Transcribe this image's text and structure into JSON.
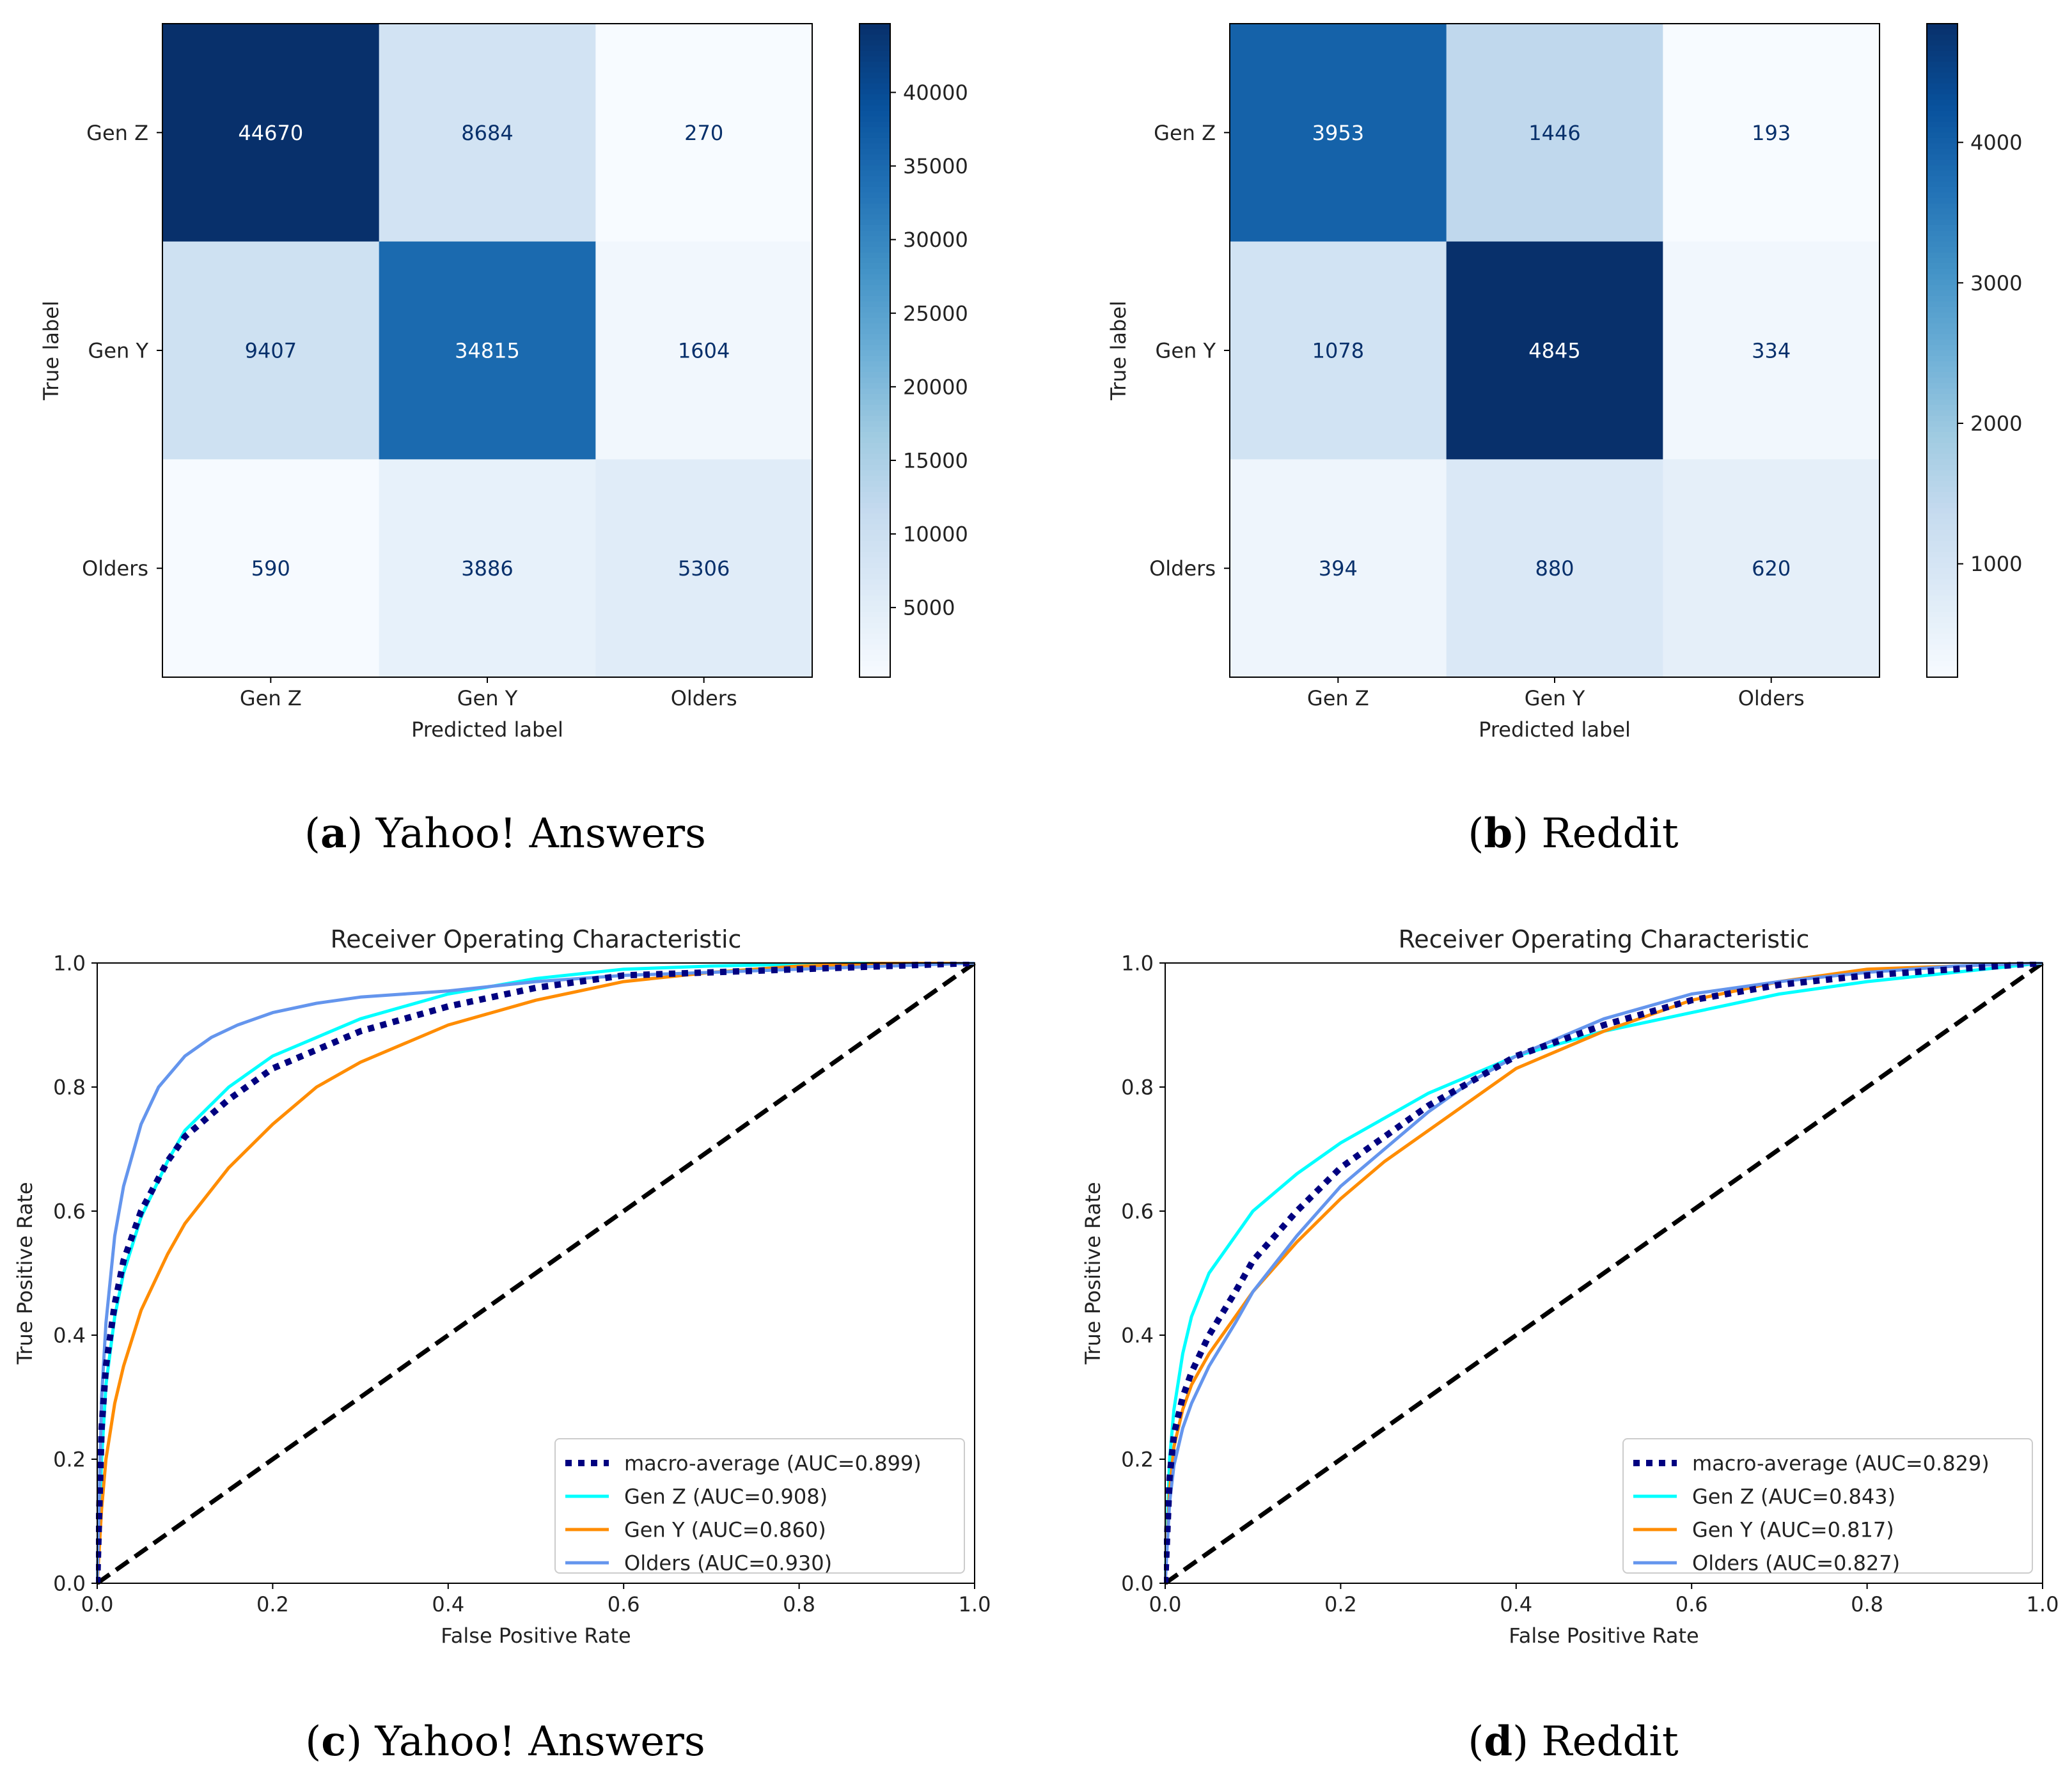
{
  "chart_data": [
    {
      "id": "a",
      "type": "heatmap",
      "subtitle_letter": "a",
      "subtitle_text": "Yahoo! Answers",
      "xlabel": "Predicted label",
      "ylabel": "True label",
      "x_categories": [
        "Gen Z",
        "Gen Y",
        "Olders"
      ],
      "y_categories": [
        "Gen Z",
        "Gen Y",
        "Olders"
      ],
      "matrix": [
        [
          44670,
          8684,
          270
        ],
        [
          9407,
          34815,
          1604
        ],
        [
          590,
          3886,
          5306
        ]
      ],
      "colorbar_range": [
        270,
        44670
      ],
      "colorbar_ticks": [
        5000,
        10000,
        15000,
        20000,
        25000,
        30000,
        35000,
        40000
      ],
      "colorbar_tick_labels": [
        "5000",
        "10000",
        "15000",
        "20000",
        "25000",
        "30000",
        "35000",
        "40000"
      ],
      "colormap": [
        "#f7fbff",
        "#deebf7",
        "#c6dbef",
        "#9ecae1",
        "#6baed6",
        "#4292c6",
        "#2171b5",
        "#08519c",
        "#08306b"
      ]
    },
    {
      "id": "b",
      "type": "heatmap",
      "subtitle_letter": "b",
      "subtitle_text": "Reddit",
      "xlabel": "Predicted label",
      "ylabel": "True label",
      "x_categories": [
        "Gen Z",
        "Gen Y",
        "Olders"
      ],
      "y_categories": [
        "Gen Z",
        "Gen Y",
        "Olders"
      ],
      "matrix": [
        [
          3953,
          1446,
          193
        ],
        [
          1078,
          4845,
          334
        ],
        [
          394,
          880,
          620
        ]
      ],
      "colorbar_range": [
        193,
        4845
      ],
      "colorbar_ticks": [
        1000,
        2000,
        3000,
        4000
      ],
      "colorbar_tick_labels": [
        "1000",
        "2000",
        "3000",
        "4000"
      ],
      "colormap": [
        "#f7fbff",
        "#deebf7",
        "#c6dbef",
        "#9ecae1",
        "#6baed6",
        "#4292c6",
        "#2171b5",
        "#08519c",
        "#08306b"
      ]
    },
    {
      "id": "c",
      "type": "line",
      "title": "Receiver Operating Characteristic",
      "subtitle_letter": "c",
      "subtitle_text": "Yahoo! Answers",
      "xlabel": "False Positive Rate",
      "ylabel": "True Positive Rate",
      "xlim": [
        0,
        1
      ],
      "ylim": [
        0,
        1
      ],
      "xticks": [
        0,
        0.2,
        0.4,
        0.6,
        0.8,
        1.0
      ],
      "yticks": [
        0,
        0.2,
        0.4,
        0.6,
        0.8,
        1.0
      ],
      "xtick_labels": [
        "0.0",
        "0.2",
        "0.4",
        "0.6",
        "0.8",
        "1.0"
      ],
      "ytick_labels": [
        "0.0",
        "0.2",
        "0.4",
        "0.6",
        "0.8",
        "1.0"
      ],
      "legend_position": "lower-right",
      "diagonal": {
        "color": "#000000",
        "style": "dashed"
      },
      "series": [
        {
          "name": "macro-average (AUC=0.899)",
          "color": "#000080",
          "style": "dotted",
          "x": [
            0,
            0.005,
            0.01,
            0.02,
            0.03,
            0.05,
            0.08,
            0.1,
            0.15,
            0.2,
            0.25,
            0.3,
            0.35,
            0.4,
            0.5,
            0.6,
            0.7,
            0.8,
            0.9,
            1.0
          ],
          "y": [
            0,
            0.25,
            0.35,
            0.45,
            0.52,
            0.6,
            0.68,
            0.72,
            0.78,
            0.83,
            0.86,
            0.89,
            0.91,
            0.93,
            0.96,
            0.98,
            0.985,
            0.99,
            0.995,
            1.0
          ]
        },
        {
          "name": "Gen Z (AUC=0.908)",
          "color": "#00ffff",
          "style": "solid",
          "x": [
            0,
            0.005,
            0.01,
            0.02,
            0.03,
            0.05,
            0.08,
            0.1,
            0.15,
            0.2,
            0.25,
            0.3,
            0.35,
            0.4,
            0.5,
            0.6,
            0.7,
            0.8,
            0.9,
            1.0
          ],
          "y": [
            0,
            0.2,
            0.32,
            0.43,
            0.5,
            0.59,
            0.68,
            0.73,
            0.8,
            0.85,
            0.88,
            0.91,
            0.93,
            0.95,
            0.975,
            0.99,
            0.995,
            0.998,
            1.0,
            1.0
          ]
        },
        {
          "name": "Gen Y (AUC=0.860)",
          "color": "#ff8c00",
          "style": "solid",
          "x": [
            0,
            0.005,
            0.01,
            0.02,
            0.03,
            0.05,
            0.08,
            0.1,
            0.15,
            0.2,
            0.25,
            0.3,
            0.35,
            0.4,
            0.5,
            0.6,
            0.7,
            0.8,
            0.9,
            1.0
          ],
          "y": [
            0,
            0.12,
            0.2,
            0.29,
            0.35,
            0.44,
            0.53,
            0.58,
            0.67,
            0.74,
            0.8,
            0.84,
            0.87,
            0.9,
            0.94,
            0.97,
            0.985,
            0.995,
            1.0,
            1.0
          ]
        },
        {
          "name": "Olders (AUC=0.930)",
          "color": "#6495ed",
          "style": "solid",
          "x": [
            0,
            0.005,
            0.01,
            0.02,
            0.03,
            0.05,
            0.07,
            0.1,
            0.13,
            0.16,
            0.2,
            0.25,
            0.3,
            0.35,
            0.4,
            0.5,
            0.6,
            0.7,
            0.8,
            0.9,
            1.0
          ],
          "y": [
            0,
            0.3,
            0.42,
            0.56,
            0.64,
            0.74,
            0.8,
            0.85,
            0.88,
            0.9,
            0.92,
            0.935,
            0.945,
            0.95,
            0.955,
            0.97,
            0.98,
            0.985,
            0.99,
            0.995,
            1.0
          ]
        }
      ]
    },
    {
      "id": "d",
      "type": "line",
      "title": "Receiver Operating Characteristic",
      "subtitle_letter": "d",
      "subtitle_text": "Reddit",
      "xlabel": "False Positive Rate",
      "ylabel": "True Positive Rate",
      "xlim": [
        0,
        1
      ],
      "ylim": [
        0,
        1
      ],
      "xticks": [
        0,
        0.2,
        0.4,
        0.6,
        0.8,
        1.0
      ],
      "yticks": [
        0,
        0.2,
        0.4,
        0.6,
        0.8,
        1.0
      ],
      "xtick_labels": [
        "0.0",
        "0.2",
        "0.4",
        "0.6",
        "0.8",
        "1.0"
      ],
      "ytick_labels": [
        "0.0",
        "0.2",
        "0.4",
        "0.6",
        "0.8",
        "1.0"
      ],
      "legend_position": "lower-right",
      "diagonal": {
        "color": "#000000",
        "style": "dashed"
      },
      "series": [
        {
          "name": "macro-average (AUC=0.829)",
          "color": "#000080",
          "style": "dotted",
          "x": [
            0,
            0.005,
            0.01,
            0.02,
            0.03,
            0.05,
            0.08,
            0.1,
            0.15,
            0.2,
            0.25,
            0.3,
            0.35,
            0.4,
            0.5,
            0.6,
            0.7,
            0.8,
            0.9,
            1.0
          ],
          "y": [
            0,
            0.17,
            0.24,
            0.3,
            0.34,
            0.4,
            0.47,
            0.52,
            0.6,
            0.67,
            0.72,
            0.77,
            0.81,
            0.85,
            0.9,
            0.94,
            0.965,
            0.98,
            0.99,
            1.0
          ]
        },
        {
          "name": "Gen Z (AUC=0.843)",
          "color": "#00ffff",
          "style": "solid",
          "x": [
            0,
            0.005,
            0.01,
            0.02,
            0.03,
            0.05,
            0.08,
            0.1,
            0.15,
            0.2,
            0.25,
            0.3,
            0.35,
            0.4,
            0.5,
            0.6,
            0.7,
            0.8,
            0.9,
            1.0
          ],
          "y": [
            0,
            0.2,
            0.28,
            0.37,
            0.43,
            0.5,
            0.56,
            0.6,
            0.66,
            0.71,
            0.75,
            0.79,
            0.82,
            0.85,
            0.89,
            0.92,
            0.95,
            0.97,
            0.985,
            1.0
          ]
        },
        {
          "name": "Gen Y (AUC=0.817)",
          "color": "#ff8c00",
          "style": "solid",
          "x": [
            0,
            0.005,
            0.01,
            0.02,
            0.03,
            0.05,
            0.08,
            0.1,
            0.15,
            0.2,
            0.25,
            0.3,
            0.35,
            0.4,
            0.5,
            0.6,
            0.7,
            0.8,
            0.9,
            1.0
          ],
          "y": [
            0,
            0.15,
            0.22,
            0.28,
            0.32,
            0.37,
            0.43,
            0.47,
            0.55,
            0.62,
            0.68,
            0.73,
            0.78,
            0.83,
            0.89,
            0.94,
            0.97,
            0.99,
            0.995,
            1.0
          ]
        },
        {
          "name": "Olders (AUC=0.827)",
          "color": "#6495ed",
          "style": "solid",
          "x": [
            0,
            0.005,
            0.01,
            0.02,
            0.03,
            0.05,
            0.08,
            0.1,
            0.15,
            0.2,
            0.25,
            0.3,
            0.35,
            0.4,
            0.5,
            0.6,
            0.7,
            0.8,
            0.9,
            1.0
          ],
          "y": [
            0,
            0.13,
            0.19,
            0.25,
            0.29,
            0.35,
            0.42,
            0.47,
            0.56,
            0.64,
            0.7,
            0.76,
            0.81,
            0.85,
            0.91,
            0.95,
            0.97,
            0.985,
            0.995,
            1.0
          ]
        }
      ]
    }
  ]
}
